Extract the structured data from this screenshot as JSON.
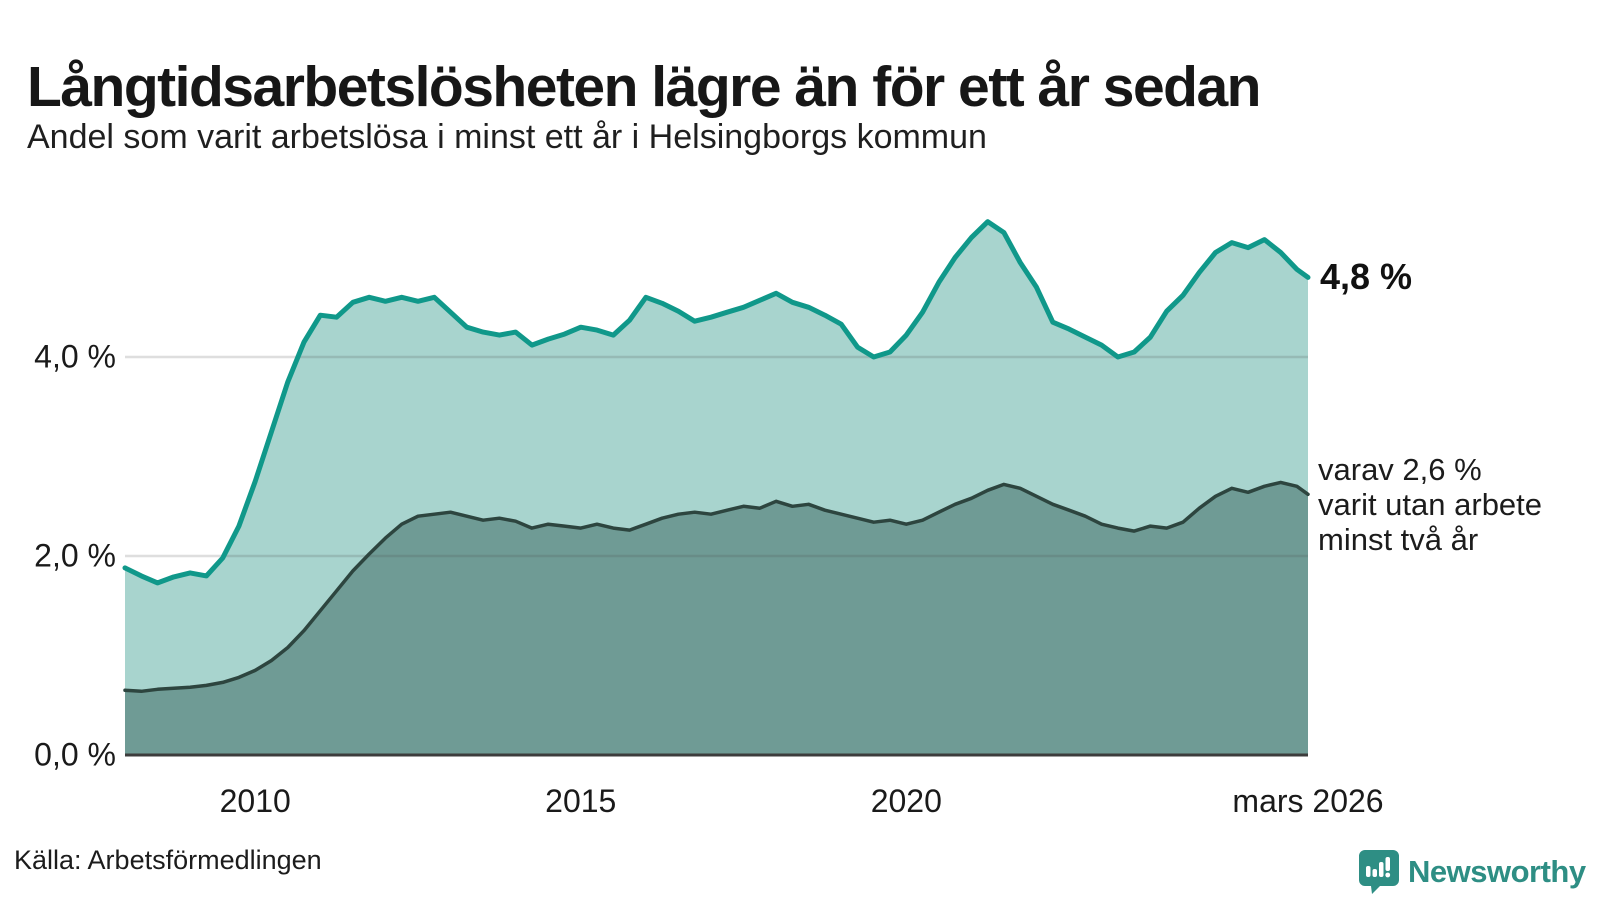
{
  "header": {
    "title": "Långtidsarbetslösheten lägre än för ett år sedan",
    "subtitle": "Andel som varit arbetslösa i minst ett år i Helsingborgs kommun"
  },
  "chart_data": {
    "type": "area",
    "title": "Långtidsarbetslösheten lägre än för ett år sedan",
    "subtitle": "Andel som varit arbetslösa i minst ett år i Helsingborgs kommun",
    "unit": "%",
    "x_range": [
      2008.0,
      2026.17
    ],
    "ylim": [
      0,
      5.6
    ],
    "grid": "horizontal",
    "y_ticks": [
      {
        "label": "0,0 %",
        "value": 0
      },
      {
        "label": "2,0 %",
        "value": 2
      },
      {
        "label": "4,0 %",
        "value": 4
      }
    ],
    "x_ticks": [
      {
        "label": "2010",
        "year": 2010
      },
      {
        "label": "2015",
        "year": 2015
      },
      {
        "label": "2020",
        "year": 2020
      },
      {
        "label": "mars 2026",
        "year": 2026.17
      }
    ],
    "x": [
      2008.0,
      2008.25,
      2008.5,
      2008.75,
      2009.0,
      2009.25,
      2009.5,
      2009.75,
      2010.0,
      2010.25,
      2010.5,
      2010.75,
      2011.0,
      2011.25,
      2011.5,
      2011.75,
      2012.0,
      2012.25,
      2012.5,
      2012.75,
      2013.0,
      2013.25,
      2013.5,
      2013.75,
      2014.0,
      2014.25,
      2014.5,
      2014.75,
      2015.0,
      2015.25,
      2015.5,
      2015.75,
      2016.0,
      2016.25,
      2016.5,
      2016.75,
      2017.0,
      2017.25,
      2017.5,
      2017.75,
      2018.0,
      2018.25,
      2018.5,
      2018.75,
      2019.0,
      2019.25,
      2019.5,
      2019.75,
      2020.0,
      2020.25,
      2020.5,
      2020.75,
      2021.0,
      2021.25,
      2021.5,
      2021.75,
      2022.0,
      2022.25,
      2022.5,
      2022.75,
      2023.0,
      2023.25,
      2023.5,
      2023.75,
      2024.0,
      2024.25,
      2024.5,
      2024.75,
      2025.0,
      2025.25,
      2025.5,
      2025.75,
      2026.0,
      2026.17
    ],
    "series": [
      {
        "name": "Andel arbetslösa minst ett år",
        "line_color": "#10988a",
        "fill_color": "#a8d4ce",
        "line_width": 5,
        "values": [
          1.88,
          1.8,
          1.73,
          1.79,
          1.83,
          1.8,
          1.98,
          2.3,
          2.75,
          3.25,
          3.75,
          4.15,
          4.42,
          4.4,
          4.55,
          4.6,
          4.56,
          4.6,
          4.56,
          4.6,
          4.45,
          4.3,
          4.25,
          4.22,
          4.25,
          4.12,
          4.18,
          4.23,
          4.3,
          4.27,
          4.22,
          4.37,
          4.6,
          4.54,
          4.46,
          4.36,
          4.4,
          4.45,
          4.5,
          4.57,
          4.64,
          4.55,
          4.5,
          4.42,
          4.33,
          4.1,
          4.0,
          4.05,
          4.22,
          4.45,
          4.75,
          5.0,
          5.2,
          5.36,
          5.25,
          4.95,
          4.7,
          4.35,
          4.28,
          4.2,
          4.12,
          4.0,
          4.05,
          4.2,
          4.46,
          4.62,
          4.85,
          5.05,
          5.15,
          5.1,
          5.18,
          5.05,
          4.88,
          4.8
        ]
      },
      {
        "name": "Andel arbetslösa minst två år",
        "line_color": "#2d453f",
        "fill_color": "#6f9b95",
        "line_width": 3.5,
        "values": [
          0.65,
          0.64,
          0.66,
          0.67,
          0.68,
          0.7,
          0.73,
          0.78,
          0.85,
          0.95,
          1.08,
          1.25,
          1.45,
          1.65,
          1.85,
          2.02,
          2.18,
          2.32,
          2.4,
          2.42,
          2.44,
          2.4,
          2.36,
          2.38,
          2.35,
          2.28,
          2.32,
          2.3,
          2.28,
          2.32,
          2.28,
          2.26,
          2.32,
          2.38,
          2.42,
          2.44,
          2.42,
          2.46,
          2.5,
          2.48,
          2.55,
          2.5,
          2.52,
          2.46,
          2.42,
          2.38,
          2.34,
          2.36,
          2.32,
          2.36,
          2.44,
          2.52,
          2.58,
          2.66,
          2.72,
          2.68,
          2.6,
          2.52,
          2.46,
          2.4,
          2.32,
          2.28,
          2.25,
          2.3,
          2.28,
          2.34,
          2.48,
          2.6,
          2.68,
          2.64,
          2.7,
          2.74,
          2.7,
          2.62
        ]
      }
    ],
    "annotations": {
      "latest_total": "4,8 %",
      "two_year_line1": "varav 2,6 %",
      "two_year_line2": "varit utan arbete",
      "two_year_line3": "minst två år"
    }
  },
  "footer": {
    "source": "Källa: Arbetsförmedlingen",
    "brand": "Newsworthy"
  },
  "colors": {
    "background": "#ffffff",
    "grid": "#d4d4d4",
    "axis": "#3c3c3c",
    "text": "#1a1a1a",
    "brand_teal": "#2e8e84",
    "total_line": "#10988a",
    "total_fill": "#a8d4ce",
    "two_year_line": "#2d453f",
    "two_year_fill": "#6f9b95"
  }
}
